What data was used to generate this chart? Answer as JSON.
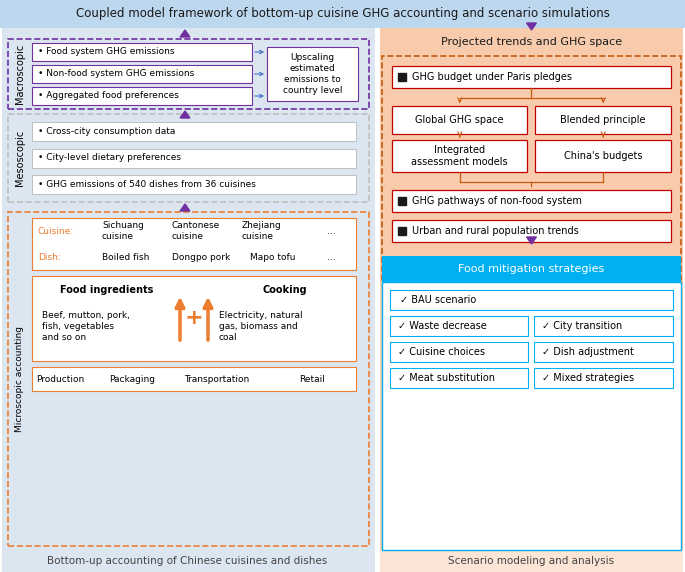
{
  "title": "Coupled model framework of bottom-up cuisine GHG accounting and scenario simulations",
  "title_bg": "#bdd7ee",
  "left_panel_bg": "#dce6f1",
  "right_panel_top_bg": "#f8cbad",
  "bottom_left_label": "Bottom-up accounting of Chinese cuisines and dishes",
  "bottom_right_label": "Scenario modeling and analysis",
  "bottom_left_bg": "#dce6f1",
  "bottom_right_bg": "#fce4d6",
  "macro_label": "Macroscopic",
  "meso_label": "Mesoscopic",
  "micro_label": "Microscopic accounting",
  "macro_items": [
    "• Food system GHG emissions",
    "• Non-food system GHG emissions",
    "• Aggregated food preferences"
  ],
  "meso_items": [
    "• Cross-city consumption data",
    "• City-level dietary preferences",
    "• GHG emissions of 540 dishes from 36 cuisines"
  ],
  "upscaling_text": "Upscaling\nestimated\nemissions to\ncountry level",
  "cuisine_label": "Cuisine:",
  "cuisine_cols": [
    "Sichuang\ncuisine",
    "Cantonese\ncuisine",
    "Zhejiang\ncuisine",
    "..."
  ],
  "dish_label": "Dish:",
  "dish_cols": [
    "Boiled fish",
    "Dongpo pork",
    "Mapo tofu",
    "..."
  ],
  "ingredients_title": "Food ingredients",
  "ingredients_text": "Beef, mutton, pork,\nfish, vegetables\nand so on",
  "cooking_title": "Cooking",
  "cooking_text": "Electricity, natural\ngas, biomass and\ncoal",
  "lifecycle_items": [
    "Production",
    "Packaging",
    "Transportation",
    "Retail"
  ],
  "right_title": "Projected trends and GHG space",
  "right_box1": "GHG budget under Paris pledges",
  "right_box2": "Global GHG space",
  "right_box3": "Blended principle",
  "right_box4": "Integrated\nassessment models",
  "right_box5": "China's budgets",
  "right_box6": "GHG pathways of non-food system",
  "right_box7": "Urban and rural population trends",
  "food_mit_title": "Food mitigation strategies",
  "food_mit_bg": "#00b0f0",
  "food_mit_border": "#00b0f0",
  "mit_row1": "✓ BAU scenario",
  "mit_col1": [
    "✓ Waste decrease",
    "✓ Cuisine choices",
    "✓ Meat substitution"
  ],
  "mit_col2": [
    "✓ City transition",
    "✓ Dish adjustment",
    "✓ Mixed strategies"
  ],
  "purple": "#7030a0",
  "orange": "#ed7d31",
  "macro_border_color": "#7030a0",
  "meso_border_color": "#bfbfbf",
  "micro_border_color": "#ed7d31",
  "right_dashed_border": "#c55a11",
  "inner_box_border_macro": "#7030a0",
  "inner_box_border_meso": "#bfbfbf",
  "inner_box_border_micro": "#ed7d31",
  "right_inner_border": "#c00000",
  "arrow_blue": "#4472c4",
  "mit_item_border": "#00b0f0"
}
